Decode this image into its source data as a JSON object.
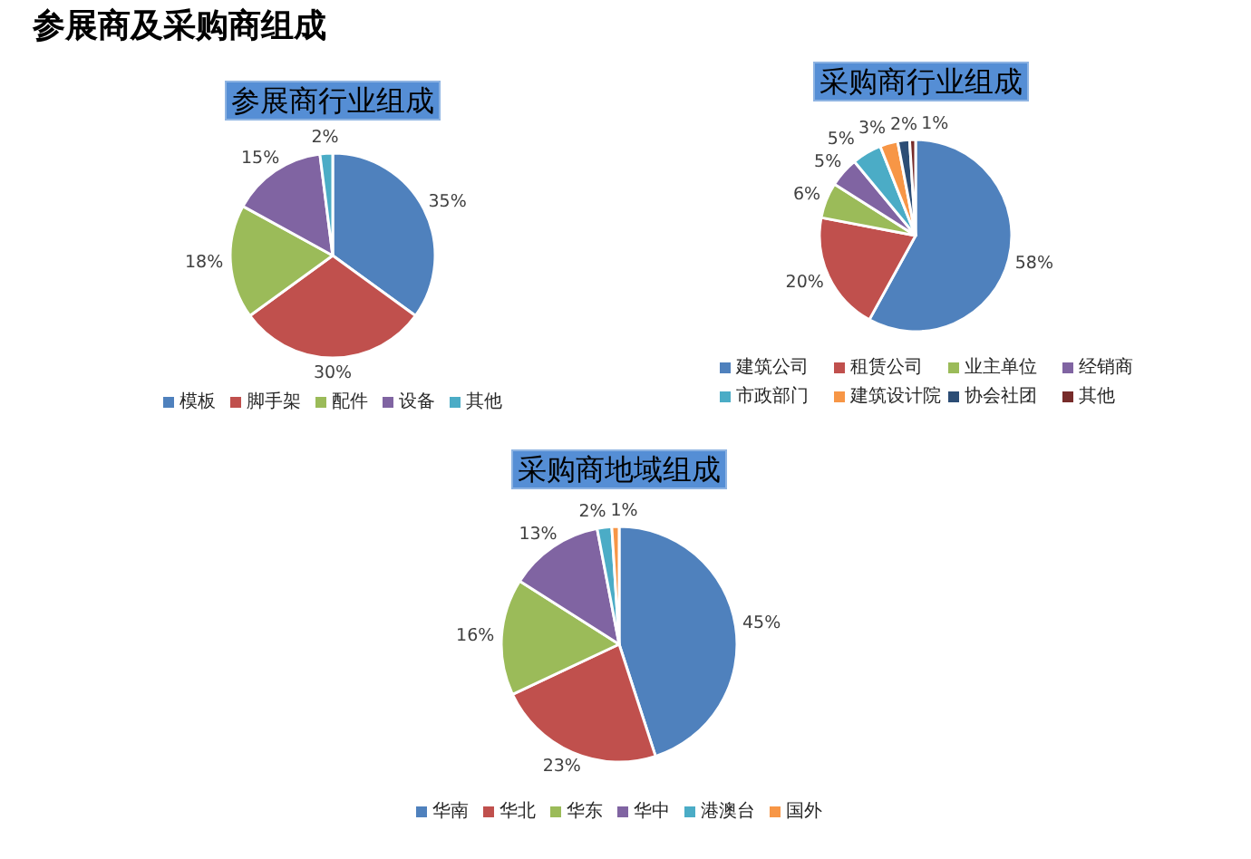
{
  "chart_data": [
    {
      "type": "other",
      "title": "参展商及采购商组成"
    },
    {
      "type": "pie",
      "title": "参展商行业组成",
      "categories": [
        "模板",
        "脚手架",
        "配件",
        "设备",
        "其他"
      ],
      "values": [
        35,
        30,
        18,
        15,
        2
      ],
      "colors": [
        "#4f81bd",
        "#c0504d",
        "#9bbb59",
        "#8064a2",
        "#4bacc6"
      ],
      "value_labels": [
        "35%",
        "30%",
        "18%",
        "15%",
        "2%"
      ],
      "legend": "bottom"
    },
    {
      "type": "pie",
      "title": "采购商行业组成",
      "categories": [
        "建筑公司",
        "租赁公司",
        "业主单位",
        "经销商",
        "市政部门",
        "建筑设计院",
        "协会社团",
        "其他"
      ],
      "values": [
        58,
        20,
        6,
        5,
        5,
        3,
        2,
        1
      ],
      "colors": [
        "#4f81bd",
        "#c0504d",
        "#9bbb59",
        "#8064a2",
        "#4bacc6",
        "#f79646",
        "#2c4d75",
        "#772c2a"
      ],
      "value_labels": [
        "58%",
        "20%",
        "6%",
        "5%",
        "5%",
        "3%",
        "2%",
        "1%"
      ],
      "legend": "bottom"
    },
    {
      "type": "pie",
      "title": "采购商地域组成",
      "categories": [
        "华南",
        "华北",
        "华东",
        "华中",
        "港澳台",
        "国外"
      ],
      "values": [
        45,
        23,
        16,
        13,
        2,
        1
      ],
      "colors": [
        "#4f81bd",
        "#c0504d",
        "#9bbb59",
        "#8064a2",
        "#4bacc6",
        "#f79646"
      ],
      "value_labels": [
        "45%",
        "23%",
        "16%",
        "13%",
        "2%",
        "1%"
      ],
      "legend": "bottom"
    }
  ]
}
